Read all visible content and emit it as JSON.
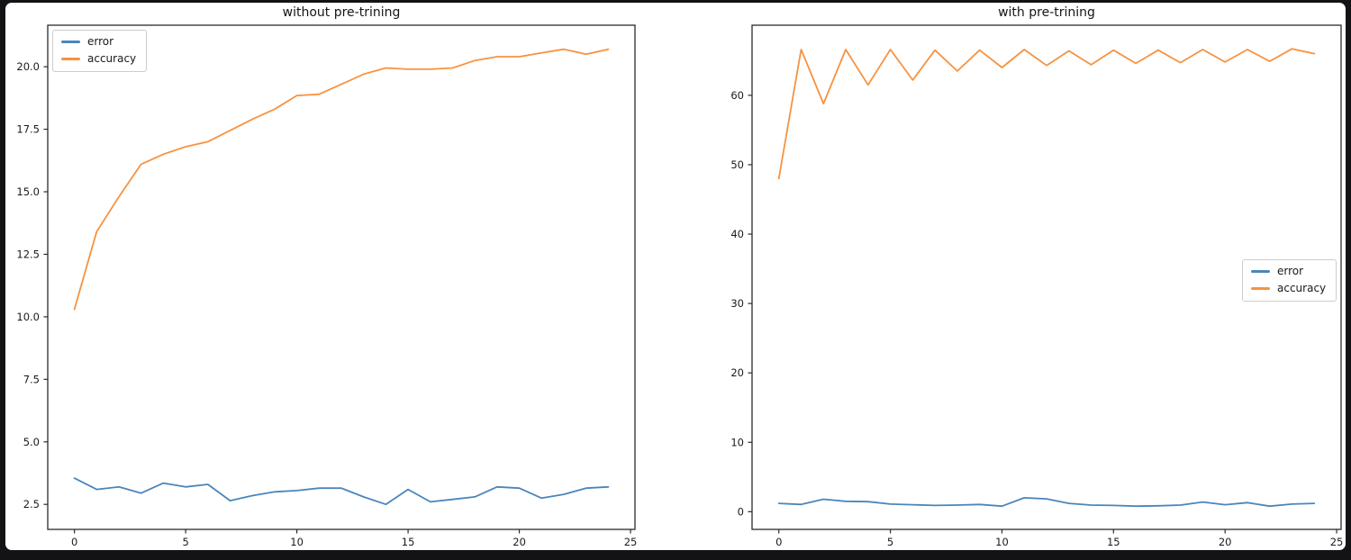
{
  "figure": {
    "background": "#ffffff",
    "frame_color": "#131316",
    "axis_color": "#2b2b2b",
    "text_color": "#1a1a1a"
  },
  "chart_data": [
    {
      "id": "left",
      "type": "line",
      "title": "without pre-trining",
      "x": [
        0,
        1,
        2,
        3,
        4,
        5,
        6,
        7,
        8,
        9,
        10,
        11,
        12,
        13,
        14,
        15,
        16,
        17,
        18,
        19,
        20,
        21,
        22,
        23,
        24
      ],
      "series": [
        {
          "name": "error",
          "color": "#4a86bb",
          "values": [
            3.55,
            3.1,
            3.2,
            2.95,
            3.35,
            3.2,
            3.3,
            2.65,
            2.85,
            3.0,
            3.05,
            3.15,
            3.15,
            2.8,
            2.5,
            3.1,
            2.6,
            2.7,
            2.8,
            3.2,
            3.15,
            2.75,
            2.9,
            3.15,
            3.2
          ]
        },
        {
          "name": "accuracy",
          "color": "#f79240",
          "values": [
            10.3,
            13.4,
            14.8,
            16.1,
            16.5,
            16.8,
            17.0,
            17.45,
            17.9,
            18.3,
            18.85,
            18.9,
            19.3,
            19.7,
            19.95,
            19.9,
            19.9,
            19.95,
            20.25,
            20.4,
            20.4,
            20.55,
            20.7,
            20.5,
            20.7
          ]
        }
      ],
      "xlim": [
        -1.2,
        25.2
      ],
      "ylim": [
        1.5,
        21.66
      ],
      "xticks": [
        0,
        5,
        10,
        15,
        20,
        25
      ],
      "xtick_labels": [
        "0",
        "5",
        "10",
        "15",
        "20",
        "25"
      ],
      "yticks": [
        2.5,
        5.0,
        7.5,
        10.0,
        12.5,
        15.0,
        17.5,
        20.0
      ],
      "ytick_labels": [
        "2.5",
        "5.0",
        "7.5",
        "10.0",
        "12.5",
        "15.0",
        "17.5",
        "20.0"
      ],
      "grid": false,
      "legend": {
        "position": "upper-left",
        "items": [
          "error",
          "accuracy"
        ]
      }
    },
    {
      "id": "right",
      "type": "line",
      "title": "with pre-trining",
      "x": [
        0,
        1,
        2,
        3,
        4,
        5,
        6,
        7,
        8,
        9,
        10,
        11,
        12,
        13,
        14,
        15,
        16,
        17,
        18,
        19,
        20,
        21,
        22,
        23,
        24
      ],
      "series": [
        {
          "name": "error",
          "color": "#4a86bb",
          "values": [
            1.2,
            1.05,
            1.8,
            1.5,
            1.45,
            1.1,
            1.0,
            0.9,
            0.95,
            1.05,
            0.8,
            2.0,
            1.85,
            1.2,
            0.95,
            0.9,
            0.8,
            0.85,
            0.95,
            1.4,
            1.0,
            1.3,
            0.8,
            1.1,
            1.2
          ]
        },
        {
          "name": "accuracy",
          "color": "#f79240",
          "values": [
            48.0,
            66.6,
            58.8,
            66.6,
            61.5,
            66.6,
            62.2,
            66.5,
            63.5,
            66.5,
            64.0,
            66.6,
            64.3,
            66.4,
            64.4,
            66.5,
            64.6,
            66.5,
            64.7,
            66.6,
            64.8,
            66.6,
            64.9,
            66.7,
            66.0
          ]
        }
      ],
      "xlim": [
        -1.2,
        25.2
      ],
      "ylim": [
        -2.55,
        70.1
      ],
      "xticks": [
        0,
        5,
        10,
        15,
        20,
        25
      ],
      "xtick_labels": [
        "0",
        "5",
        "10",
        "15",
        "20",
        "25"
      ],
      "yticks": [
        0,
        10,
        20,
        30,
        40,
        50,
        60
      ],
      "ytick_labels": [
        "0",
        "10",
        "20",
        "30",
        "40",
        "50",
        "60"
      ],
      "grid": false,
      "legend": {
        "position": "center-right",
        "items": [
          "error",
          "accuracy"
        ]
      }
    }
  ]
}
